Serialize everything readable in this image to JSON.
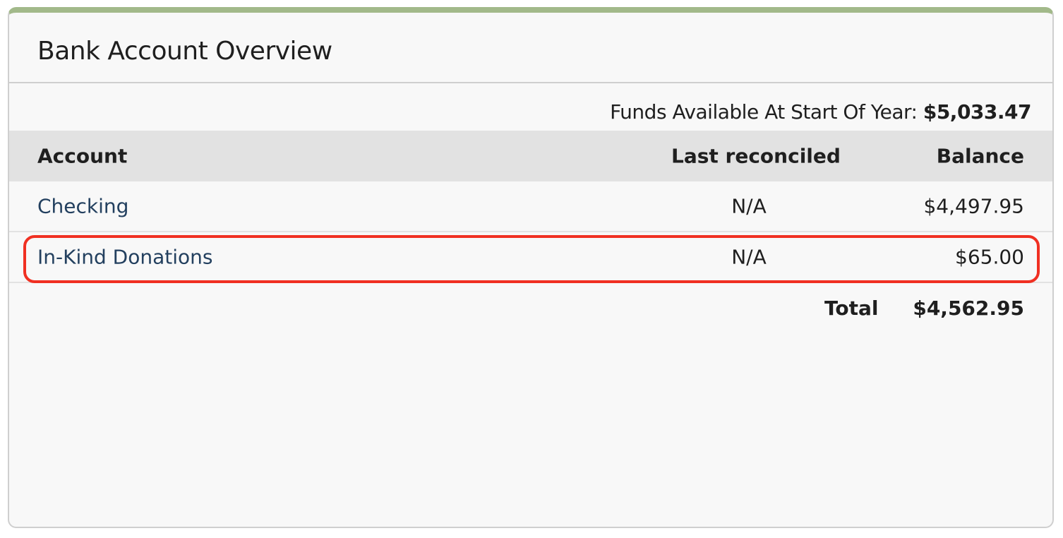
{
  "panel": {
    "title": "Bank Account Overview",
    "accent_color": "#a2b98a",
    "highlight_color": "#f03022"
  },
  "funds": {
    "label": "Funds Available At Start Of Year:",
    "value": "$5,033.47"
  },
  "table": {
    "headers": [
      "Account",
      "Last reconciled",
      "Balance"
    ],
    "rows": [
      {
        "account": "Checking",
        "last_reconciled": "N/A",
        "balance": "$4,497.95"
      },
      {
        "account": "In-Kind Donations",
        "last_reconciled": "N/A",
        "balance": "$65.00"
      }
    ],
    "total_label": "Total",
    "total_value": "$4,562.95"
  }
}
